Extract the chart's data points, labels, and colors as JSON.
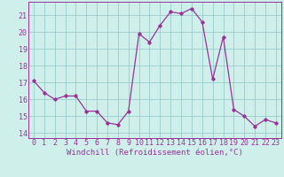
{
  "x": [
    0,
    1,
    2,
    3,
    4,
    5,
    6,
    7,
    8,
    9,
    10,
    11,
    12,
    13,
    14,
    15,
    16,
    17,
    18,
    19,
    20,
    21,
    22,
    23
  ],
  "y": [
    17.1,
    16.4,
    16.0,
    16.2,
    16.2,
    15.3,
    15.3,
    14.6,
    14.5,
    15.3,
    19.9,
    19.4,
    20.4,
    21.2,
    21.1,
    21.4,
    20.6,
    17.2,
    19.7,
    15.4,
    15.0,
    14.4,
    14.8,
    14.6
  ],
  "line_color": "#993399",
  "marker": "D",
  "marker_size": 1.8,
  "linewidth": 0.9,
  "bg_color": "#cff0ea",
  "grid_color": "#99cccc",
  "xlabel": "Windchill (Refroidissement éolien,°C)",
  "ylabel_ticks": [
    14,
    15,
    16,
    17,
    18,
    19,
    20,
    21
  ],
  "xtick_labels": [
    "0",
    "1",
    "2",
    "3",
    "4",
    "5",
    "6",
    "7",
    "8",
    "9",
    "10",
    "11",
    "12",
    "13",
    "14",
    "15",
    "16",
    "17",
    "18",
    "19",
    "20",
    "21",
    "22",
    "23"
  ],
  "xlim": [
    -0.5,
    23.5
  ],
  "ylim": [
    13.7,
    21.8
  ],
  "xlabel_fontsize": 6.5,
  "tick_fontsize": 6.0
}
